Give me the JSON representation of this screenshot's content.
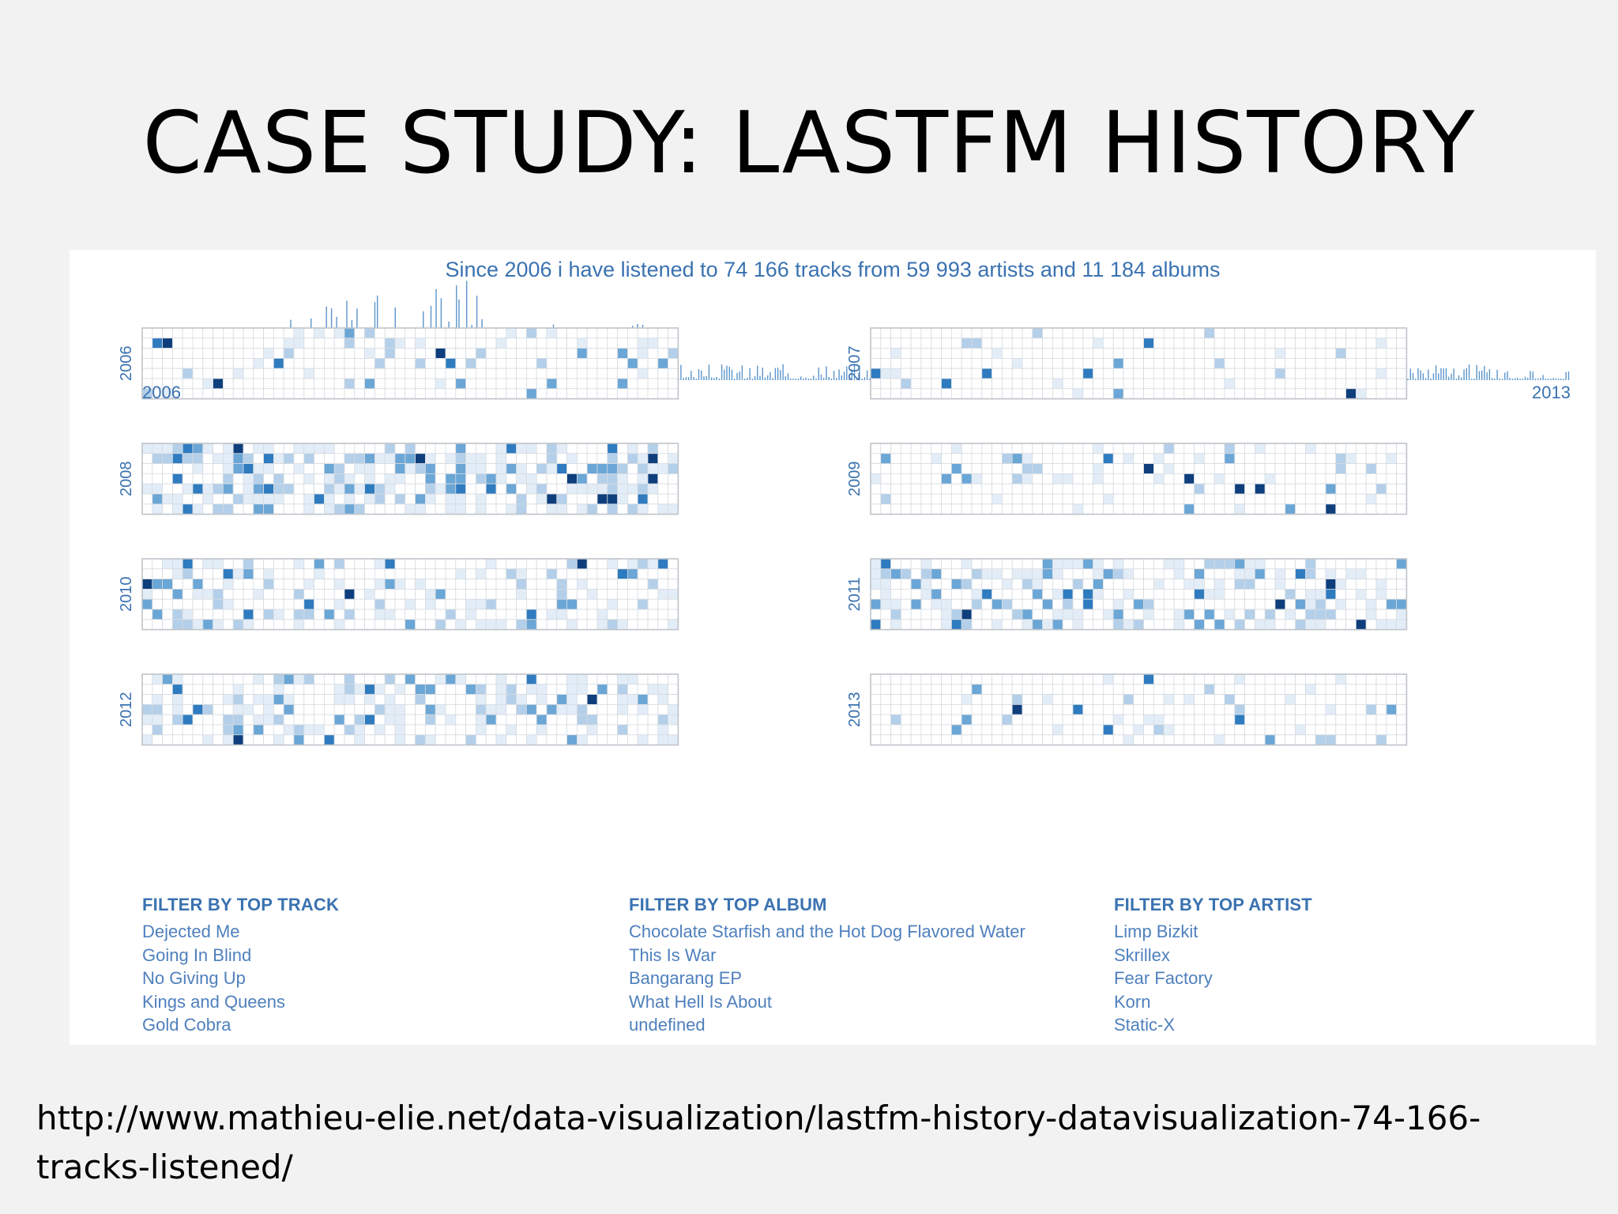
{
  "slide": {
    "title": "CASE STUDY: LASTFM HISTORY",
    "footer_url": "http://www.mathieu-elie.net/data-visualization/lastfm-history-datavisualization-74-166-tracks-listened/"
  },
  "viz": {
    "headline": "Since 2006 i have listened to 74 166 tracks from 59 993 artists and 11 184 albums",
    "timeline_start": "2006",
    "timeline_end": "2013",
    "colors": {
      "accent": "#3a72b0",
      "empty": "#ffffff",
      "level1": "#e3edf8",
      "level2": "#b3cfe9",
      "level3": "#6aa6d6",
      "level4": "#2e7bbf",
      "level5": "#0e3e7c"
    },
    "calendars": [
      {
        "year": "2006"
      },
      {
        "year": "2007"
      },
      {
        "year": "2008"
      },
      {
        "year": "2009"
      },
      {
        "year": "2010"
      },
      {
        "year": "2011"
      },
      {
        "year": "2012"
      },
      {
        "year": "2013"
      }
    ]
  },
  "filters": {
    "track": {
      "title": "FILTER BY TOP TRACK",
      "items": [
        "Dejected Me",
        "Going In Blind",
        "No Giving Up",
        "Kings and Queens",
        "Gold Cobra"
      ]
    },
    "album": {
      "title": "FILTER BY TOP ALBUM",
      "items": [
        "Chocolate Starfish and the Hot Dog Flavored Water",
        "This Is War",
        "Bangarang EP",
        "What Hell Is About",
        "undefined"
      ]
    },
    "artist": {
      "title": "FILTER BY TOP ARTIST",
      "items": [
        "Limp Bizkit",
        "Skrillex",
        "Fear Factory",
        "Korn",
        "Static-X"
      ]
    }
  }
}
